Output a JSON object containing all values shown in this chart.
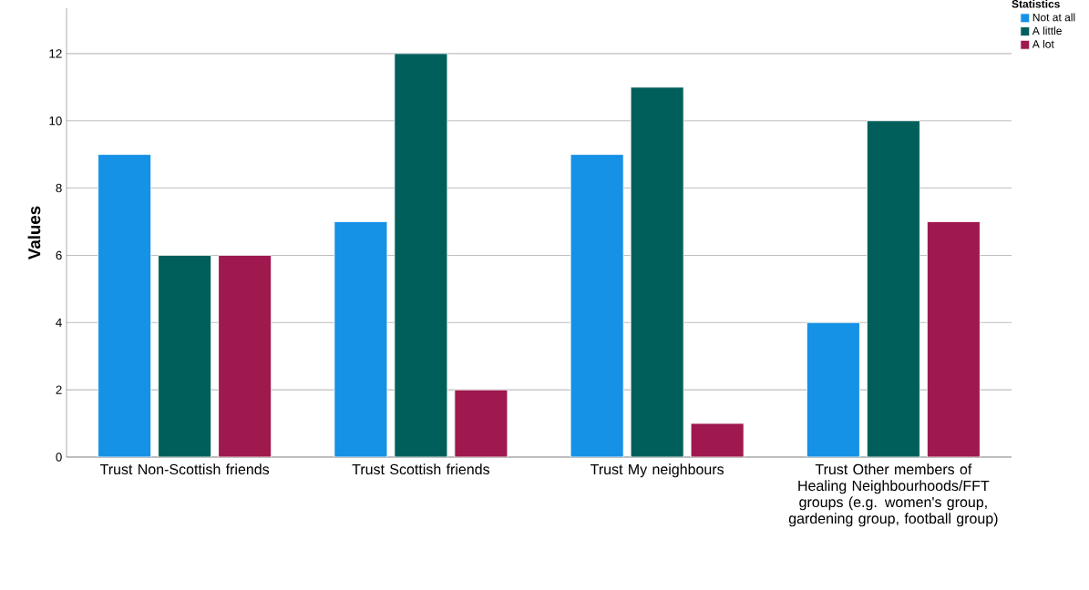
{
  "chart_data": {
    "type": "bar",
    "ylabel": "Values",
    "legend_title": "Statistics",
    "categories": [
      "Trust Non-Scottish friends",
      "Trust Scottish friends",
      "Trust My neighbours",
      "Trust Other members of Healing Neighbourhoods/FFT groups (e.g. women's group, gardening group, football group)"
    ],
    "series": [
      {
        "name": "Not at all",
        "color": "#1591e6",
        "values": [
          9,
          7,
          9,
          4
        ]
      },
      {
        "name": "A little",
        "color": "#005f5b",
        "values": [
          6,
          12,
          11,
          10
        ]
      },
      {
        "name": "A lot",
        "color": "#9f194f",
        "values": [
          6,
          2,
          1,
          7
        ]
      }
    ],
    "ylim": [
      0,
      13.35
    ],
    "yticks": [
      0,
      2,
      4,
      6,
      8,
      10,
      12
    ],
    "grid": "y",
    "legend": "top right"
  }
}
